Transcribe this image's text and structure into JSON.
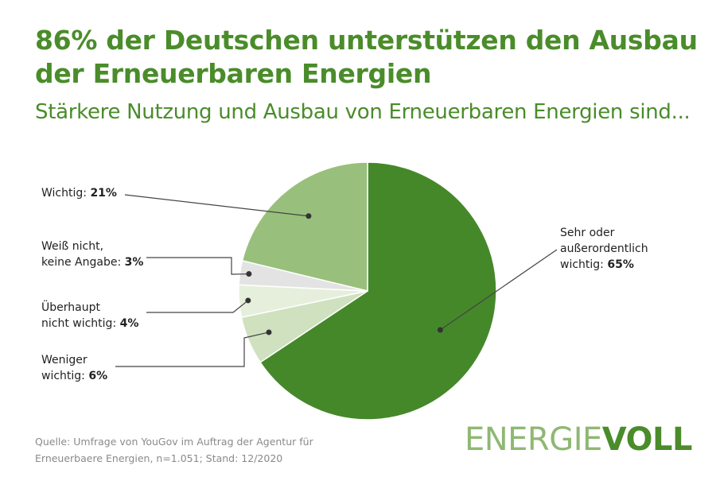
{
  "title": "86% der Deutschen unterstützen den Ausbau der Erneuerbaren Energien",
  "subtitle": "Stärkere Nutzung und Ausbau von Erneuerbaren Energien sind...",
  "colors": {
    "title": "#4a8c2a",
    "slices": [
      "#45882a",
      "#cfe1bf",
      "#e6efdb",
      "#e3e3e3",
      "#98c07c"
    ],
    "leader": "#444444"
  },
  "chart_data": {
    "type": "pie",
    "title": "86% der Deutschen unterstützen den Ausbau der Erneuerbaren Energien",
    "start_angle": "12 o'clock, clockwise",
    "slices": [
      {
        "name_lines": [
          "Sehr oder",
          "außerordentlich",
          "wichtig:"
        ],
        "pct": "65%",
        "value": 65
      },
      {
        "name_lines": [
          "Weniger",
          "wichtig:"
        ],
        "pct": "6%",
        "value": 6
      },
      {
        "name_lines": [
          "Überhaupt",
          "nicht wichtig:"
        ],
        "pct": "4%",
        "value": 4
      },
      {
        "name_lines": [
          "Weiß nicht,",
          "keine Angabe:"
        ],
        "pct": "3%",
        "value": 3
      },
      {
        "name_lines": [
          "Wichtig:"
        ],
        "pct": "21%",
        "value": 21
      }
    ]
  },
  "source": {
    "line1": "Quelle: Umfrage von YouGov im Auftrag der Agentur für",
    "line2": "Erneuerbaere Energien, n=1.051; Stand: 12/2020"
  },
  "brand": {
    "part1": "ENERGIE",
    "part2": "VOLL"
  }
}
